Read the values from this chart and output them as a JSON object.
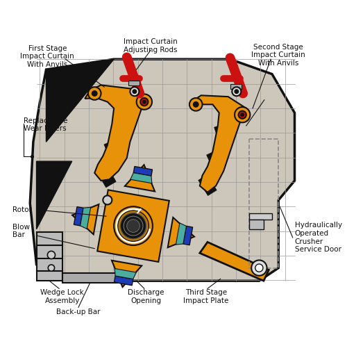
{
  "fig_width": 5.0,
  "fig_height": 5.21,
  "dpi": 100,
  "bg_color": "#ffffff",
  "body_color": "#cdc7bb",
  "body_outline": "#111111",
  "orange_color": "#e8920a",
  "black_color": "#111111",
  "red_color": "#cc1111",
  "blue_color": "#1e3cb5",
  "teal_color": "#4aada0",
  "grid_color": "#999999",
  "annotations": {
    "first_stage": "First Stage\nImpact Curtain\nWith Anvils",
    "rods": "Impact Curtain\nAdjusting Rods",
    "second_stage": "Second Stage\nImpact Curtain\nWith Anvils",
    "replaceable": "Replaceable\nWear Liners",
    "rotor": "Rotor",
    "blow_bar": "Blow\nBar",
    "wedge_lock": "Wedge Lock\nAssembly",
    "back_up": "Back-up Bar",
    "discharge": "Discharge\nOpening",
    "third_stage": "Third Stage\nImpact Plate",
    "hydraulic": "Hydraulically\nOperated\nCrusher\nService Door"
  }
}
